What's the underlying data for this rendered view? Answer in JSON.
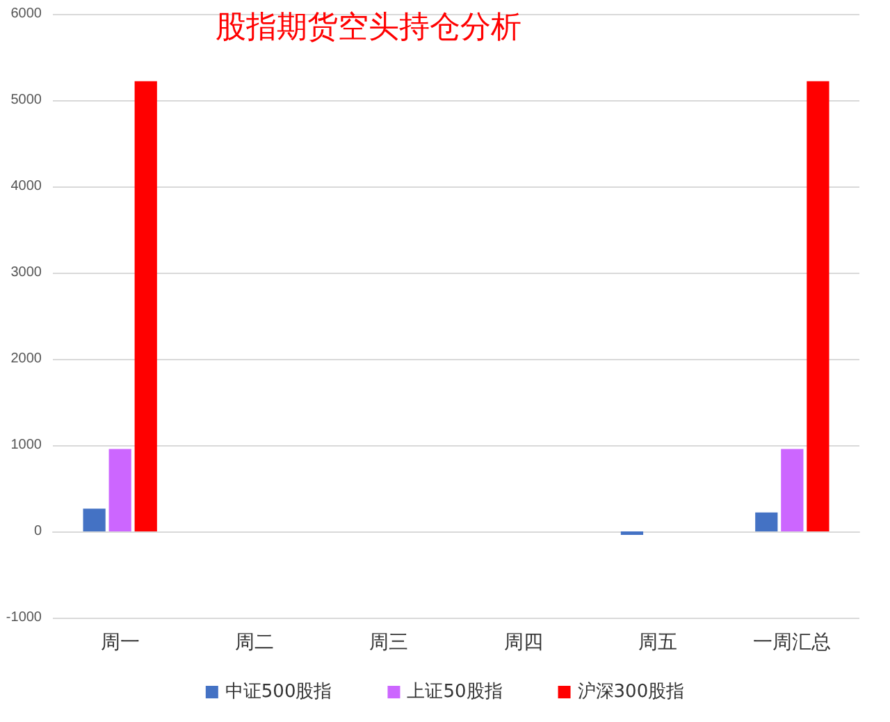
{
  "chart_data": {
    "type": "bar",
    "title": "股指期货空头持仓分析",
    "categories": [
      "周一",
      "周二",
      "周三",
      "周四",
      "周五",
      "一周汇总"
    ],
    "series": [
      {
        "name": "中证500股指",
        "color": "#4472c4",
        "values": [
          265,
          0,
          0,
          0,
          -40,
          220
        ]
      },
      {
        "name": "上证50股指",
        "color": "#cc66ff",
        "values": [
          955,
          0,
          0,
          0,
          0,
          955
        ]
      },
      {
        "name": "沪深300股指",
        "color": "#ff0000",
        "values": [
          5220,
          0,
          0,
          0,
          0,
          5220
        ]
      }
    ],
    "ylim": [
      -1000,
      6000
    ],
    "yticks": [
      -1000,
      0,
      1000,
      2000,
      3000,
      4000,
      5000,
      6000
    ],
    "grid": "y",
    "legend": "bottom"
  }
}
